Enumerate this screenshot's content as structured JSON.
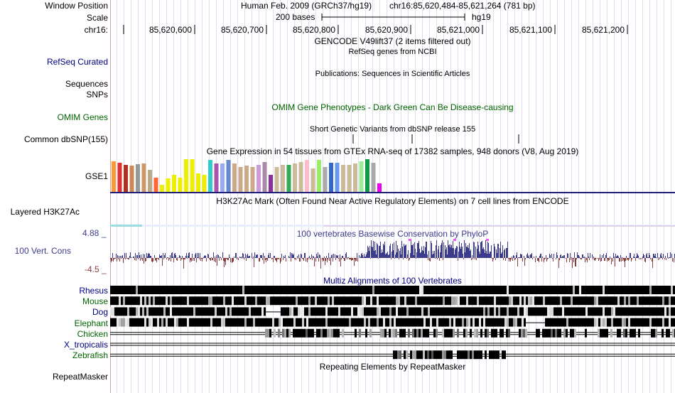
{
  "colors": {
    "navy": "#000080",
    "green": "#006400",
    "cons_pos": "#3c3c8c",
    "cons_neg": "#8c3c3c",
    "grid": "#ddd8f0",
    "blue_line": "#1e1e78"
  },
  "header": {
    "window_position_label": "Window Position",
    "scale_label": "Scale",
    "chrom_label": "chr16:",
    "assembly_text": "Human Feb. 2009 (GRCh37/hg19)",
    "position_text": "chr16:85,620,484-85,621,264 (781 bp)",
    "scale_value": "200 bases",
    "scale_db": "hg19",
    "ticks": [
      "85,620,600",
      "85,620,700",
      "85,620,800",
      "85,620,900",
      "85,621,000",
      "85,621,100",
      "85,621,200"
    ]
  },
  "tracks": {
    "gencode_title": "GENCODE V49lift37 (2 items filtered out)",
    "refseq_center": "RefSeq genes from NCBI",
    "refseq_label": "RefSeq Curated",
    "publications_center": "Publications: Sequences in Scientific Articles",
    "sequences_label": "Sequences",
    "snps_label": "SNPs",
    "omim_center": "OMIM Gene Phenotypes - Dark Green Can Be Disease-causing",
    "omim_label": "OMIM Genes",
    "dbsnp_center": "Short Genetic Variants from dbSNP release 155",
    "dbsnp_label": "Common dbSNP(155)",
    "gtex_center": "Gene Expression in 54 tissues from GTEx RNA-seq of 17382 samples, 948 donors (V8, Aug 2019)",
    "gtex_label": "GSE1",
    "h3k27ac_center": "H3K27Ac Mark (Often Found Near Active Regulatory Elements) on 7 cell lines from ENCODE",
    "h3k27ac_label": "Layered H3K27Ac",
    "cons_center": "100 vertebrates Basewise Conservation by PhyloP",
    "cons_label": "100 Vert. Cons",
    "cons_max": "4.88 _",
    "cons_min": "-4.5 _",
    "multiz_center": "Multiz Alignments of 100 Vertebrates",
    "species": [
      {
        "name": "Rhesus",
        "color": "#000080"
      },
      {
        "name": "Mouse",
        "color": "#006400"
      },
      {
        "name": "Dog",
        "color": "#000080"
      },
      {
        "name": "Elephant",
        "color": "#006400"
      },
      {
        "name": "Chicken",
        "color": "#006400"
      },
      {
        "name": "X_tropicalis",
        "color": "#000080"
      },
      {
        "name": "Zebrafish",
        "color": "#006400"
      }
    ],
    "repeat_center": "Repeating Elements by RepeatMasker",
    "repeat_label": "RepeatMasker"
  },
  "gtex_bar_colors": [
    "#ff9933",
    "#dd3333",
    "#aa3322",
    "#cc8855",
    "#999999",
    "#cc9966",
    "#bbaa88",
    "#ff6633",
    "#eeee00",
    "#eeee00",
    "#eeee00",
    "#eeee00",
    "#eeee00",
    "#eeee00",
    "#eeee00",
    "#eeee00",
    "#33cccc",
    "#aa55aa",
    "#99aaee",
    "#6688cc",
    "#ccaa88",
    "#ccaa88",
    "#ccaa88",
    "#ccaa88",
    "#cc99dd",
    "#aa88aa",
    "#883399",
    "#ccbb99",
    "#ccbb99",
    "#33aa55",
    "#ccbb99",
    "#ccbb99",
    "#ffbbcc",
    "#ccbb99",
    "#99ee66",
    "#aaaaaa",
    "#3366cc",
    "#6699ee",
    "#ccbb99",
    "#ccbb99",
    "#ccbb99",
    "#99ee99",
    "#119944",
    "#aaaaaa",
    "#ee00ee"
  ],
  "gtex_bar_values": [
    0.92,
    0.88,
    0.8,
    0.78,
    0.82,
    0.85,
    0.65,
    0.42,
    0.22,
    0.4,
    0.5,
    0.42,
    0.98,
    0.98,
    0.55,
    0.5,
    0.95,
    0.85,
    0.85,
    0.95,
    0.85,
    0.75,
    0.78,
    0.75,
    0.8,
    0.9,
    0.5,
    0.75,
    0.8,
    0.8,
    0.85,
    0.9,
    0.95,
    0.7,
    0.95,
    0.75,
    0.88,
    0.88,
    0.8,
    0.8,
    0.85,
    0.92,
    0.98,
    0.88,
    0.25
  ]
}
